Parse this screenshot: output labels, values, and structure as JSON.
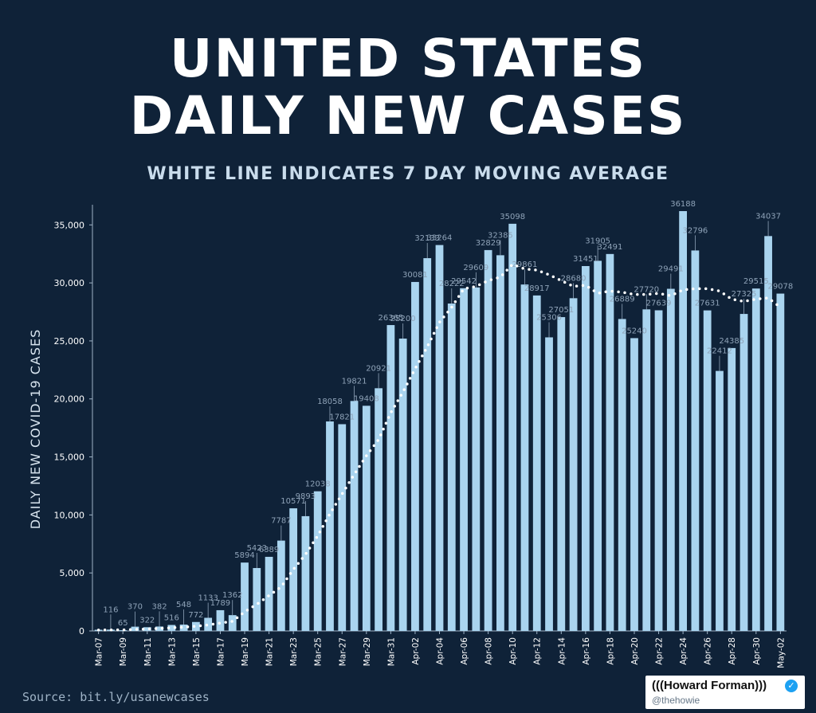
{
  "title_line1": "UNITED STATES",
  "title_line2": "DAILY NEW CASES",
  "subtitle": "WHITE LINE INDICATES 7 DAY MOVING AVERAGE",
  "source": "Source: bit.ly/usanewcases",
  "badge": {
    "name": "(((Howard Forman)))",
    "handle": "@thehowie",
    "verified_icon": "✓"
  },
  "colors": {
    "background": "#0f2238",
    "bar": "#a9d4ef",
    "average_line": "#ffffff",
    "text": "#ffffff",
    "label": "#8fa3b8"
  },
  "chart_data": {
    "type": "bar",
    "title": "UNITED STATES DAILY NEW CASES",
    "subtitle": "WHITE LINE INDICATES 7 DAY MOVING AVERAGE",
    "xlabel": "",
    "ylabel": "DAILY NEW COVID-19 CASES",
    "ylim": [
      0,
      36188
    ],
    "yticks": [
      0,
      5000,
      10000,
      15000,
      20000,
      25000,
      30000,
      35000
    ],
    "ytick_labels": [
      "0",
      "5,000",
      "10,000",
      "15,000",
      "20,000",
      "25,000",
      "30,000",
      "35,000"
    ],
    "categories": [
      "Mar-07",
      "Mar-08",
      "Mar-09",
      "Mar-10",
      "Mar-11",
      "Mar-12",
      "Mar-13",
      "Mar-14",
      "Mar-15",
      "Mar-16",
      "Mar-17",
      "Mar-18",
      "Mar-19",
      "Mar-20",
      "Mar-21",
      "Mar-22",
      "Mar-23",
      "Mar-24",
      "Mar-25",
      "Mar-26",
      "Mar-27",
      "Mar-28",
      "Mar-29",
      "Mar-30",
      "Mar-31",
      "Apr-01",
      "Apr-02",
      "Apr-03",
      "Apr-04",
      "Apr-05",
      "Apr-06",
      "Apr-07",
      "Apr-08",
      "Apr-09",
      "Apr-10",
      "Apr-11",
      "Apr-12",
      "Apr-13",
      "Apr-14",
      "Apr-15",
      "Apr-16",
      "Apr-17",
      "Apr-18",
      "Apr-19",
      "Apr-20",
      "Apr-21",
      "Apr-22",
      "Apr-23",
      "Apr-24",
      "Apr-25",
      "Apr-26",
      "Apr-27",
      "Apr-28",
      "Apr-29",
      "Apr-30",
      "May-01",
      "May-02"
    ],
    "xtick_labels": [
      "Mar-07",
      "",
      "Mar-09",
      "",
      "Mar-11",
      "",
      "Mar-13",
      "",
      "Mar-15",
      "",
      "Mar-17",
      "",
      "Mar-19",
      "",
      "Mar-21",
      "",
      "Mar-23",
      "",
      "Mar-25",
      "",
      "Mar-27",
      "",
      "Mar-29",
      "",
      "Mar-31",
      "",
      "Apr-02",
      "",
      "Apr-04",
      "",
      "Apr-06",
      "",
      "Apr-08",
      "",
      "Apr-10",
      "",
      "Apr-12",
      "",
      "Apr-14",
      "",
      "Apr-16",
      "",
      "Apr-18",
      "",
      "Apr-20",
      "",
      "Apr-22",
      "",
      "Apr-24",
      "",
      "Apr-26",
      "",
      "Apr-28",
      "",
      "Apr-30",
      "",
      "May-02"
    ],
    "series": [
      {
        "name": "Daily new cases",
        "values": [
          102,
          116,
          65,
          370,
          322,
          382,
          516,
          548,
          772,
          1133,
          1789,
          1362,
          5894,
          5423,
          6389,
          7787,
          10571,
          9893,
          12038,
          18058,
          17821,
          19821,
          19408,
          20921,
          26365,
          25200,
          30081,
          32133,
          33264,
          28222,
          29542,
          29609,
          32829,
          32385,
          35098,
          29861,
          28917,
          25306,
          27051,
          28680,
          31451,
          31905,
          32491,
          26889,
          25240,
          27720,
          27639,
          29491,
          36188,
          32796,
          27631,
          22412,
          24385,
          27325,
          29515,
          34037,
          29078
        ],
        "data_labels": [
          "",
          "116",
          "65",
          "370",
          "322",
          "382",
          "516",
          "548",
          "772",
          "1133",
          "1789",
          "1362",
          "5894",
          "5423",
          "6389",
          "7787",
          "10571",
          "9893",
          "12038",
          "18058",
          "17821",
          "19821",
          "19408",
          "20921",
          "26365",
          "25200",
          "30081",
          "32133",
          "33264",
          "28222",
          "29542",
          "29609",
          "32829",
          "32385",
          "35098",
          "29861",
          "28917",
          "25306",
          "27051",
          "28680",
          "31451",
          "31905",
          "32491",
          "26889",
          "25240",
          "27720",
          "27639",
          "29491",
          "36188",
          "32796",
          "27631",
          "22412",
          "24385",
          "27325",
          "29515",
          "34037",
          "29078"
        ]
      },
      {
        "name": "7 day moving average",
        "values": [
          80,
          85,
          95,
          130,
          170,
          220,
          275,
          330,
          410,
          520,
          680,
          830,
          1650,
          2300,
          3050,
          3800,
          5300,
          6600,
          8200,
          10100,
          11800,
          13500,
          15100,
          16500,
          18800,
          20600,
          22600,
          24500,
          26600,
          27900,
          29500,
          29700,
          30200,
          30500,
          31600,
          31200,
          31100,
          30700,
          30200,
          29700,
          29800,
          29100,
          29300,
          29200,
          29000,
          29000,
          29100,
          28900,
          29400,
          29500,
          29500,
          29300,
          28600,
          28400,
          28600,
          28700,
          27900
        ]
      }
    ]
  }
}
